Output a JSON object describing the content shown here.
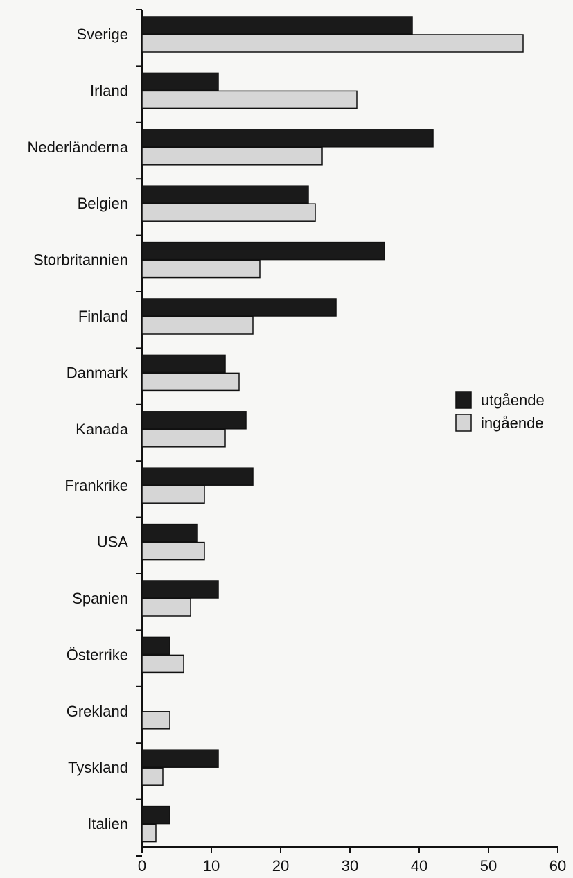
{
  "chart_data": {
    "type": "bar",
    "orientation": "horizontal",
    "categories": [
      "Sverige",
      "Irland",
      "Nederländerna",
      "Belgien",
      "Storbritannien",
      "Finland",
      "Danmark",
      "Kanada",
      "Frankrike",
      "USA",
      "Spanien",
      "Österrike",
      "Grekland",
      "Tyskland",
      "Italien"
    ],
    "series": [
      {
        "name": "utgående",
        "color": "#1a1a1a",
        "values": [
          39,
          11,
          42,
          24,
          35,
          28,
          12,
          15,
          16,
          8,
          11,
          4,
          0,
          11,
          4
        ]
      },
      {
        "name": "ingående",
        "color": "#d6d6d6",
        "values": [
          55,
          31,
          26,
          25,
          17,
          16,
          14,
          12,
          9,
          9,
          7,
          6,
          4,
          3,
          2
        ]
      }
    ],
    "xaxis": {
      "ticks": [
        "0",
        "10",
        "20",
        "30",
        "40",
        "50",
        "60"
      ],
      "range": [
        0,
        60
      ]
    },
    "legend_position": "right",
    "grid": false
  }
}
